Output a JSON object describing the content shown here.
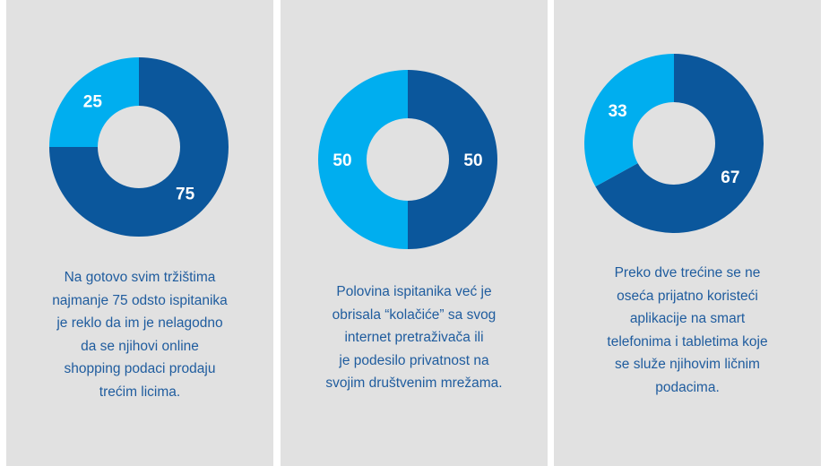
{
  "colors": {
    "dark": "#0b579c",
    "light": "#00aeef",
    "panel": "#e1e1e1",
    "text": "#1f5c9e"
  },
  "chart_data": [
    {
      "type": "pie",
      "donut": true,
      "values": [
        75,
        25
      ],
      "labels": [
        "75",
        "25"
      ],
      "caption": "Na gotovo svim tržištima\nnajmanje 75 odsto ispitanika\nje reklo da im je nelagodno\nda se njihovi online\nshopping podaci prodaju\ntrećim licima."
    },
    {
      "type": "pie",
      "donut": true,
      "values": [
        50,
        50
      ],
      "labels": [
        "50",
        "50"
      ],
      "caption": "Polovina ispitanika već je\nobrisala “kolačiće” sa svog\ninternet pretraživača ili\nje podesilo privatnost na\nsvojim društvenim mrežama."
    },
    {
      "type": "pie",
      "donut": true,
      "values": [
        67,
        33
      ],
      "labels": [
        "67",
        "33"
      ],
      "caption": "Preko dve trećine se ne\noseća prijatno koristeći\naplikacije na smart\ntelefonima i tabletima koje\nse služe njihovim ličnim\npodacima."
    }
  ]
}
